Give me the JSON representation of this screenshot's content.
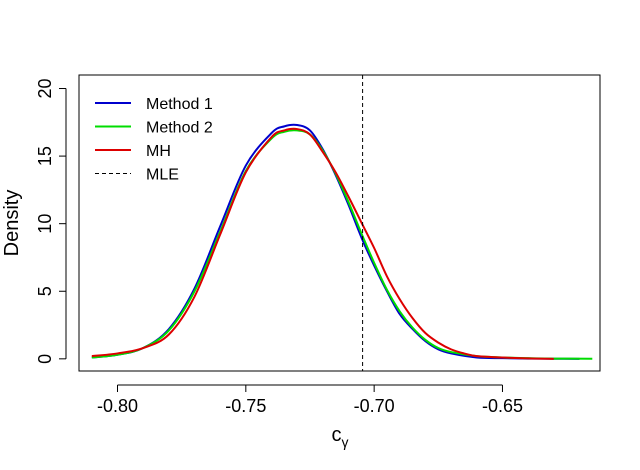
{
  "chart_data": {
    "type": "line",
    "title": "",
    "xlabel_main": "c",
    "xlabel_sub": "γ",
    "ylabel": "Density",
    "xlim": [
      -0.815,
      -0.612
    ],
    "ylim": [
      -0.9,
      21
    ],
    "x_ticks": [
      -0.8,
      -0.75,
      -0.7,
      -0.65
    ],
    "x_tick_labels": [
      "-0.80",
      "-0.75",
      "-0.70",
      "-0.65"
    ],
    "y_ticks": [
      0,
      5,
      10,
      15,
      20
    ],
    "y_tick_labels": [
      "0",
      "5",
      "10",
      "15",
      "20"
    ],
    "legend_position": "top-left",
    "reference_line": {
      "name": "MLE",
      "x": -0.7045,
      "style": "dashed",
      "color": "#000000"
    },
    "series": [
      {
        "name": "Method 1",
        "color": "#0000CD",
        "x": [
          -0.81,
          -0.8,
          -0.79,
          -0.78,
          -0.77,
          -0.76,
          -0.75,
          -0.74,
          -0.735,
          -0.73,
          -0.725,
          -0.72,
          -0.715,
          -0.71,
          -0.705,
          -0.7,
          -0.695,
          -0.69,
          -0.685,
          -0.68,
          -0.675,
          -0.67,
          -0.66,
          -0.65,
          -0.64,
          -0.63,
          -0.62
        ],
        "values": [
          0.1,
          0.3,
          0.8,
          2.2,
          5.2,
          9.8,
          14.3,
          16.7,
          17.2,
          17.3,
          16.9,
          15.5,
          13.6,
          11.4,
          9.0,
          6.9,
          5.0,
          3.3,
          2.2,
          1.3,
          0.7,
          0.4,
          0.1,
          0.05,
          0.02,
          0.01,
          0.0
        ]
      },
      {
        "name": "Method 2",
        "color": "#00DD00",
        "x": [
          -0.81,
          -0.8,
          -0.79,
          -0.78,
          -0.77,
          -0.76,
          -0.75,
          -0.74,
          -0.735,
          -0.73,
          -0.725,
          -0.72,
          -0.715,
          -0.71,
          -0.705,
          -0.7,
          -0.695,
          -0.69,
          -0.685,
          -0.68,
          -0.675,
          -0.67,
          -0.66,
          -0.65,
          -0.64,
          -0.63,
          -0.615
        ],
        "values": [
          0.1,
          0.3,
          0.8,
          2.1,
          5.0,
          9.4,
          13.9,
          16.3,
          16.8,
          16.9,
          16.6,
          15.4,
          13.7,
          11.6,
          9.3,
          7.1,
          5.1,
          3.5,
          2.3,
          1.4,
          0.8,
          0.5,
          0.2,
          0.1,
          0.05,
          0.02,
          0.01
        ]
      },
      {
        "name": "MH",
        "color": "#DD0000",
        "x": [
          -0.81,
          -0.8,
          -0.79,
          -0.78,
          -0.77,
          -0.76,
          -0.75,
          -0.74,
          -0.735,
          -0.73,
          -0.725,
          -0.72,
          -0.715,
          -0.71,
          -0.705,
          -0.7,
          -0.695,
          -0.69,
          -0.685,
          -0.68,
          -0.675,
          -0.67,
          -0.665,
          -0.66,
          -0.65,
          -0.64,
          -0.63
        ],
        "values": [
          0.2,
          0.4,
          0.8,
          1.8,
          4.6,
          9.2,
          13.8,
          16.4,
          16.9,
          17.0,
          16.6,
          15.3,
          13.8,
          12.0,
          10.1,
          8.2,
          6.1,
          4.4,
          3.0,
          1.9,
          1.2,
          0.7,
          0.4,
          0.2,
          0.1,
          0.03,
          0.0
        ]
      }
    ],
    "legend": [
      "Method 1",
      "Method 2",
      "MH",
      "MLE"
    ]
  }
}
